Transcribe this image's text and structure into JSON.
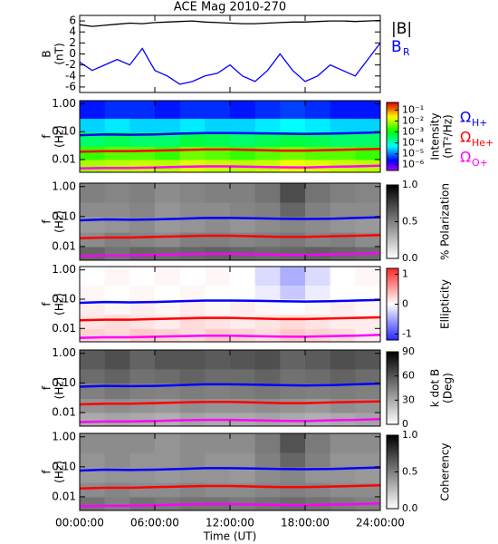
{
  "chart_data": [
    {
      "type": "line",
      "title": "ACE Mag 2010-270",
      "ylabel": [
        "B",
        "(nT)"
      ],
      "x": [
        0,
        1,
        2,
        3,
        4,
        5,
        6,
        7,
        8,
        9,
        10,
        11,
        12,
        13,
        14,
        15,
        16,
        17,
        18,
        19,
        20,
        21,
        22,
        23,
        24
      ],
      "xlim": [
        0,
        24
      ],
      "ylim": [
        -7,
        7
      ],
      "yticks": [
        -6,
        -4,
        -2,
        0,
        2,
        4,
        6
      ],
      "series": [
        {
          "name": "|B|",
          "color": "#000000",
          "values": [
            5.3,
            5.0,
            5.2,
            5.4,
            5.6,
            5.5,
            5.7,
            5.8,
            5.9,
            6.0,
            5.8,
            5.7,
            5.6,
            5.5,
            5.5,
            5.6,
            5.7,
            5.8,
            5.8,
            5.9,
            6.0,
            6.0,
            5.9,
            6.0,
            6.1
          ]
        },
        {
          "name": "B",
          "subscript": "R",
          "color": "#0000ff",
          "values": [
            -1.5,
            -3,
            -2,
            -1,
            -2,
            1,
            -3,
            -4,
            -5.5,
            -5,
            -4,
            -3.5,
            -2,
            -4,
            -5,
            -3,
            0,
            -3,
            -5,
            -4,
            -2,
            -3,
            -4,
            -1,
            2
          ]
        }
      ]
    },
    {
      "type": "heatmap",
      "ylabel": [
        "f",
        "(Hz)"
      ],
      "ylog": true,
      "xlim": [
        0,
        24
      ],
      "ylim": [
        0.0035,
        1.3
      ],
      "yticks": [
        {
          "value": 1,
          "label": "1.00"
        },
        {
          "value": 0.1,
          "label": "0.10"
        },
        0.01
      ],
      "x_bins": [
        0,
        2,
        4,
        6,
        8,
        10,
        12,
        14,
        16,
        18,
        20,
        22,
        24
      ],
      "y_bins": [
        0.0035,
        0.01,
        0.03,
        0.1,
        0.3,
        1.3
      ],
      "colormap": "rainbow",
      "zlog": true,
      "zlim": [
        3e-07,
        0.5
      ],
      "zticks": [
        {
          "value": 0.1,
          "label": "10⁻¹"
        },
        {
          "value": 0.01,
          "label": "10⁻²"
        },
        {
          "value": 0.001,
          "label": "10⁻³"
        },
        {
          "value": 0.0001,
          "label": "10⁻⁴"
        },
        {
          "value": 1e-05,
          "label": "10⁻⁵"
        },
        {
          "value": 1e-06,
          "label": "10⁻⁶"
        }
      ],
      "zlabel": [
        "Intensity",
        "(nT²/Hz)"
      ],
      "z": [
        [
          0.008,
          0.01,
          0.012,
          0.01,
          0.015,
          0.012,
          0.01,
          0.012,
          0.02,
          0.015,
          0.012,
          0.01
        ],
        [
          0.002,
          0.003,
          0.003,
          0.002,
          0.004,
          0.003,
          0.002,
          0.003,
          0.004,
          0.003,
          0.003,
          0.002
        ],
        [
          0.0003,
          0.0004,
          0.0003,
          0.0003,
          0.0005,
          0.0004,
          0.0003,
          0.0004,
          0.0005,
          0.0004,
          0.0003,
          0.0003
        ],
        [
          3e-05,
          4e-05,
          3e-05,
          3e-05,
          4e-05,
          3e-05,
          3e-05,
          4e-05,
          5e-05,
          4e-05,
          3e-05,
          3e-05
        ],
        [
          3e-06,
          4e-06,
          4e-06,
          3e-06,
          4e-06,
          4e-06,
          3e-06,
          4e-06,
          5e-06,
          4e-06,
          3e-06,
          3e-06
        ]
      ],
      "series": [
        {
          "name": "Ω",
          "subscript": "H+",
          "color": "#0000ff",
          "x": [
            0,
            2,
            4,
            6,
            8,
            10,
            12,
            14,
            16,
            18,
            20,
            22,
            24
          ],
          "values": [
            0.075,
            0.08,
            0.078,
            0.08,
            0.085,
            0.09,
            0.09,
            0.088,
            0.085,
            0.083,
            0.085,
            0.09,
            0.095
          ]
        },
        {
          "name": "Ω",
          "subscript": "He+",
          "color": "#ff0000",
          "x": [
            0,
            2,
            4,
            6,
            8,
            10,
            12,
            14,
            16,
            18,
            20,
            22,
            24
          ],
          "values": [
            0.019,
            0.02,
            0.02,
            0.021,
            0.022,
            0.023,
            0.023,
            0.022,
            0.021,
            0.021,
            0.022,
            0.023,
            0.024
          ]
        },
        {
          "name": "Ω",
          "subscript": "O+",
          "color": "#ff00ff",
          "x": [
            0,
            2,
            4,
            6,
            8,
            10,
            12,
            14,
            16,
            18,
            20,
            22,
            24
          ],
          "values": [
            0.0048,
            0.005,
            0.005,
            0.0052,
            0.0055,
            0.0057,
            0.0057,
            0.0055,
            0.0053,
            0.0052,
            0.0055,
            0.0057,
            0.006
          ]
        }
      ]
    },
    {
      "type": "heatmap",
      "ylabel": [
        "f",
        "(Hz)"
      ],
      "ylog": true,
      "xlim": [
        0,
        24
      ],
      "ylim": [
        0.0035,
        1.3
      ],
      "yticks": [
        {
          "value": 1,
          "label": "1.00"
        },
        {
          "value": 0.1,
          "label": "0.10"
        },
        0.01
      ],
      "x_bins": [
        0,
        2,
        4,
        6,
        8,
        10,
        12,
        14,
        16,
        18,
        20,
        22,
        24
      ],
      "y_bins": [
        0.0035,
        0.01,
        0.03,
        0.1,
        0.3,
        1.3
      ],
      "colormap": "gray",
      "zlim": [
        0,
        1
      ],
      "zticks": [
        {
          "value": 0,
          "label": "0.0"
        },
        {
          "value": 0.5,
          "label": "0.5"
        },
        {
          "value": 1,
          "label": "1.0"
        }
      ],
      "zlabel": [
        "% Polarization"
      ],
      "z": [
        [
          0.6,
          0.55,
          0.6,
          0.58,
          0.6,
          0.62,
          0.6,
          0.58,
          0.6,
          0.62,
          0.6,
          0.58
        ],
        [
          0.45,
          0.5,
          0.48,
          0.45,
          0.5,
          0.5,
          0.48,
          0.5,
          0.52,
          0.48,
          0.5,
          0.45
        ],
        [
          0.4,
          0.42,
          0.45,
          0.4,
          0.42,
          0.45,
          0.42,
          0.45,
          0.48,
          0.45,
          0.42,
          0.4
        ],
        [
          0.45,
          0.45,
          0.48,
          0.42,
          0.45,
          0.45,
          0.48,
          0.5,
          0.6,
          0.5,
          0.45,
          0.45
        ],
        [
          0.5,
          0.48,
          0.5,
          0.45,
          0.48,
          0.5,
          0.5,
          0.55,
          0.7,
          0.55,
          0.5,
          0.48
        ]
      ]
    },
    {
      "type": "heatmap",
      "ylabel": [
        "f",
        "(Hz)"
      ],
      "ylog": true,
      "xlim": [
        0,
        24
      ],
      "ylim": [
        0.0035,
        1.3
      ],
      "yticks": [
        {
          "value": 1,
          "label": "1.00"
        },
        {
          "value": 0.1,
          "label": "0.10"
        },
        0.01
      ],
      "x_bins": [
        0,
        2,
        4,
        6,
        8,
        10,
        12,
        14,
        16,
        18,
        20,
        22,
        24
      ],
      "y_bins": [
        0.0035,
        0.01,
        0.03,
        0.1,
        0.3,
        1.3
      ],
      "colormap": "diverging",
      "zlim": [
        -1.2,
        1.2
      ],
      "zticks": [
        1,
        0,
        -1
      ],
      "zlabel": [
        "Ellipticity"
      ],
      "z": [
        [
          0.25,
          0.2,
          0.3,
          0.25,
          0.2,
          0.3,
          0.25,
          0.2,
          0.3,
          0.25,
          0.2,
          0.1
        ],
        [
          0.15,
          0.2,
          0.15,
          0.1,
          0.2,
          0.15,
          0.1,
          0.15,
          0.2,
          0.15,
          0.1,
          0.1
        ],
        [
          0.1,
          0.05,
          0.1,
          0.05,
          0.1,
          0.05,
          0.1,
          0.05,
          0,
          0.05,
          0.1,
          0.05
        ],
        [
          0.05,
          0,
          0.05,
          0,
          0.05,
          0,
          0,
          -0.1,
          -0.3,
          -0.1,
          0,
          0
        ],
        [
          0,
          0.05,
          0,
          0.05,
          0,
          0.05,
          0,
          -0.2,
          -0.45,
          -0.2,
          0,
          0.05
        ]
      ]
    },
    {
      "type": "heatmap",
      "ylabel": [
        "f",
        "(Hz)"
      ],
      "ylog": true,
      "xlim": [
        0,
        24
      ],
      "ylim": [
        0.0035,
        1.3
      ],
      "yticks": [
        {
          "value": 1,
          "label": "1.00"
        },
        {
          "value": 0.1,
          "label": "0.10"
        },
        0.01
      ],
      "x_bins": [
        0,
        2,
        4,
        6,
        8,
        10,
        12,
        14,
        16,
        18,
        20,
        22,
        24
      ],
      "y_bins": [
        0.0035,
        0.01,
        0.03,
        0.1,
        0.3,
        1.3
      ],
      "colormap": "gray",
      "zlim": [
        0,
        90
      ],
      "zticks": [
        0,
        30,
        60,
        90
      ],
      "zlabel": [
        "k dot B",
        "(Deg)"
      ],
      "z": [
        [
          30,
          32,
          30,
          28,
          32,
          30,
          30,
          32,
          30,
          28,
          30,
          32
        ],
        [
          38,
          40,
          38,
          36,
          40,
          38,
          38,
          40,
          38,
          36,
          40,
          38
        ],
        [
          45,
          48,
          45,
          44,
          46,
          45,
          46,
          48,
          46,
          45,
          46,
          45
        ],
        [
          52,
          55,
          50,
          52,
          55,
          52,
          52,
          55,
          50,
          52,
          55,
          52
        ],
        [
          58,
          62,
          55,
          60,
          60,
          58,
          60,
          62,
          55,
          58,
          62,
          60
        ]
      ]
    },
    {
      "type": "heatmap",
      "ylabel": [
        "f",
        "(Hz)"
      ],
      "ylog": true,
      "xlim": [
        0,
        24
      ],
      "ylim": [
        0.0035,
        1.3
      ],
      "yticks": [
        {
          "value": 1,
          "label": "1.00"
        },
        {
          "value": 0.1,
          "label": "0.10"
        },
        0.01
      ],
      "x_bins": [
        0,
        2,
        4,
        6,
        8,
        10,
        12,
        14,
        16,
        18,
        20,
        22,
        24
      ],
      "y_bins": [
        0.0035,
        0.01,
        0.03,
        0.1,
        0.3,
        1.3
      ],
      "colormap": "gray",
      "zlim": [
        0,
        1
      ],
      "zticks": [
        {
          "value": 0,
          "label": "0.0"
        },
        {
          "value": 0.5,
          "label": "0.5"
        },
        {
          "value": 1,
          "label": "1.0"
        }
      ],
      "zlabel": [
        "Coherency"
      ],
      "z": [
        [
          0.55,
          0.5,
          0.55,
          0.52,
          0.55,
          0.55,
          0.52,
          0.55,
          0.58,
          0.55,
          0.52,
          0.5
        ],
        [
          0.45,
          0.48,
          0.45,
          0.45,
          0.48,
          0.45,
          0.45,
          0.48,
          0.5,
          0.48,
          0.45,
          0.45
        ],
        [
          0.4,
          0.42,
          0.42,
          0.4,
          0.42,
          0.42,
          0.4,
          0.45,
          0.48,
          0.42,
          0.42,
          0.4
        ],
        [
          0.42,
          0.45,
          0.42,
          0.42,
          0.45,
          0.42,
          0.42,
          0.5,
          0.6,
          0.5,
          0.42,
          0.42
        ],
        [
          0.45,
          0.45,
          0.45,
          0.42,
          0.45,
          0.45,
          0.45,
          0.52,
          0.68,
          0.52,
          0.45,
          0.45
        ]
      ],
      "xticks": [
        {
          "value": 0,
          "label": "00:00:00"
        },
        {
          "value": 6,
          "label": "06:00:00"
        },
        {
          "value": 12,
          "label": "12:00:00"
        },
        {
          "value": 18,
          "label": "18:00:00"
        },
        {
          "value": 24,
          "label": "24:00:00"
        }
      ],
      "xlabel": "Time (UT)"
    }
  ]
}
